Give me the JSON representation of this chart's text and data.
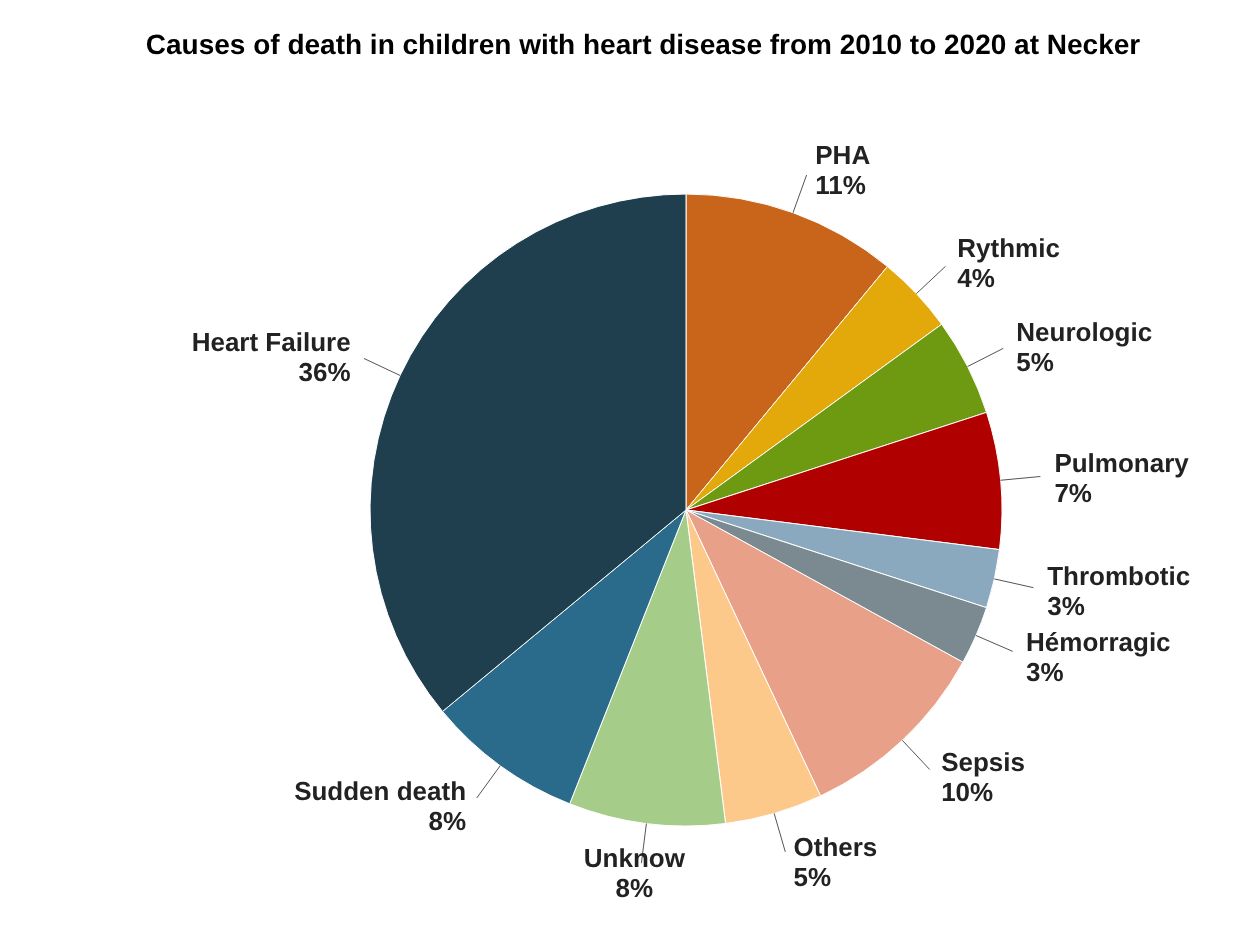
{
  "chart_data": {
    "type": "pie",
    "title": "Causes of death in children with heart disease from 2010 to 2020 at Necker",
    "categories": [
      "PHA",
      "Rythmic",
      "Neurologic",
      "Pulmonary",
      "Thrombotic",
      "Hémorragic",
      "Sepsis",
      "Others",
      "Unknow",
      "Sudden death",
      "Heart Failure"
    ],
    "values": [
      11,
      4,
      5,
      7,
      3,
      3,
      10,
      5,
      8,
      8,
      36
    ],
    "value_labels": [
      "11%",
      "4%",
      "5%",
      "7%",
      "3%",
      "3%",
      "10%",
      "5%",
      "8%",
      "8%",
      "36%"
    ],
    "colors": [
      "#c8651b",
      "#e3a80a",
      "#6e9a12",
      "#b00000",
      "#8aa9bf",
      "#7a8a90",
      "#e8a088",
      "#fcc98a",
      "#a6cc8a",
      "#2a6a8a",
      "#1f3e4e"
    ],
    "legend": false
  }
}
